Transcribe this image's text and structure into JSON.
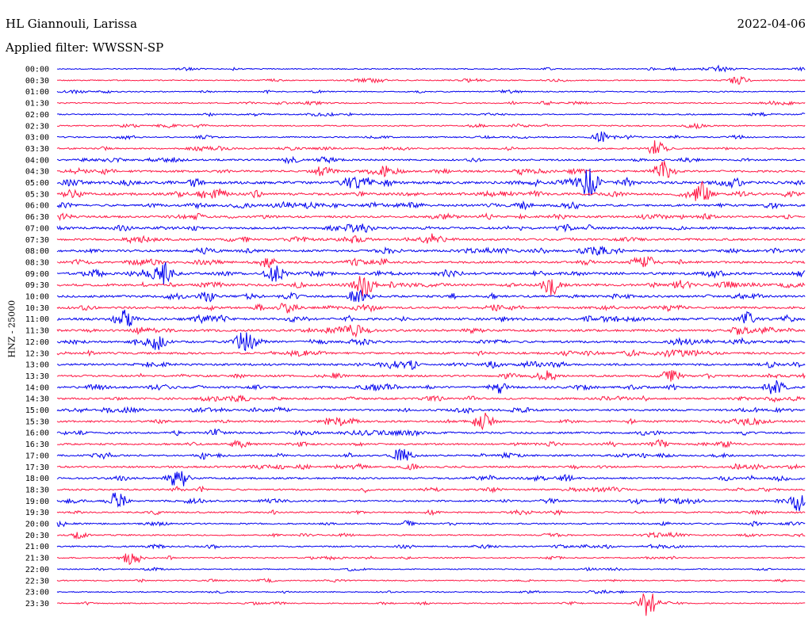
{
  "header": {
    "station": "HL Giannouli, Larissa",
    "date": "2022-04-06",
    "filter": "Applied filter: WWSSN-SP"
  },
  "chart_data": {
    "type": "line",
    "ylabel": "HNZ - 25000",
    "row_labels": [
      "00:00",
      "00:30",
      "01:00",
      "01:30",
      "02:00",
      "02:30",
      "03:00",
      "03:30",
      "04:00",
      "04:30",
      "05:00",
      "05:30",
      "06:00",
      "06:30",
      "07:00",
      "07:30",
      "08:00",
      "08:30",
      "09:00",
      "09:30",
      "10:00",
      "10:30",
      "11:00",
      "11:30",
      "12:00",
      "12:30",
      "13:00",
      "13:30",
      "14:00",
      "14:30",
      "15:00",
      "15:30",
      "16:00",
      "16:30",
      "17:00",
      "17:30",
      "18:00",
      "18:30",
      "19:00",
      "19:30",
      "20:00",
      "20:30",
      "21:00",
      "21:30",
      "22:00",
      "22:30",
      "23:00",
      "23:30"
    ],
    "colors": [
      "#0000ee",
      "#ff1744"
    ],
    "activity": [
      0.15,
      0.15,
      0.15,
      0.2,
      0.2,
      0.2,
      0.2,
      0.3,
      0.4,
      0.5,
      0.7,
      0.65,
      0.55,
      0.5,
      0.55,
      0.5,
      0.55,
      0.55,
      0.65,
      0.6,
      0.55,
      0.55,
      0.6,
      0.55,
      0.55,
      0.5,
      0.5,
      0.45,
      0.5,
      0.45,
      0.45,
      0.45,
      0.45,
      0.4,
      0.4,
      0.4,
      0.4,
      0.35,
      0.35,
      0.3,
      0.3,
      0.25,
      0.25,
      0.2,
      0.15,
      0.15,
      0.15,
      0.15
    ],
    "events": [
      {
        "row": 10,
        "t": 0.71,
        "amp": 2.4
      },
      {
        "row": 9,
        "t": 0.81,
        "amp": 1.8
      },
      {
        "row": 11,
        "t": 0.86,
        "amp": 1.8
      },
      {
        "row": 18,
        "t": 0.14,
        "amp": 2.0
      },
      {
        "row": 19,
        "t": 0.66,
        "amp": 1.8
      },
      {
        "row": 19,
        "t": 0.41,
        "amp": 1.6
      },
      {
        "row": 18,
        "t": 0.29,
        "amp": 1.5
      },
      {
        "row": 22,
        "t": 0.09,
        "amp": 1.5
      },
      {
        "row": 24,
        "t": 0.13,
        "amp": 1.5
      },
      {
        "row": 24,
        "t": 0.25,
        "amp": 1.6
      },
      {
        "row": 31,
        "t": 0.57,
        "amp": 1.2
      },
      {
        "row": 34,
        "t": 0.46,
        "amp": 1.3
      },
      {
        "row": 36,
        "t": 0.16,
        "amp": 1.5
      },
      {
        "row": 38,
        "t": 0.08,
        "amp": 1.6
      },
      {
        "row": 38,
        "t": 0.99,
        "amp": 1.8
      },
      {
        "row": 47,
        "t": 0.79,
        "amp": 2.4
      },
      {
        "row": 43,
        "t": 0.1,
        "amp": 1.3
      },
      {
        "row": 28,
        "t": 0.96,
        "amp": 1.2
      },
      {
        "row": 0,
        "t": 0.89,
        "amp": 0.6
      },
      {
        "row": 1,
        "t": 0.91,
        "amp": 0.8
      },
      {
        "row": 6,
        "t": 0.73,
        "amp": 1.0
      },
      {
        "row": 7,
        "t": 0.8,
        "amp": 1.4
      },
      {
        "row": 20,
        "t": 0.4,
        "amp": 1.3
      },
      {
        "row": 27,
        "t": 0.82,
        "amp": 1.1
      }
    ]
  }
}
